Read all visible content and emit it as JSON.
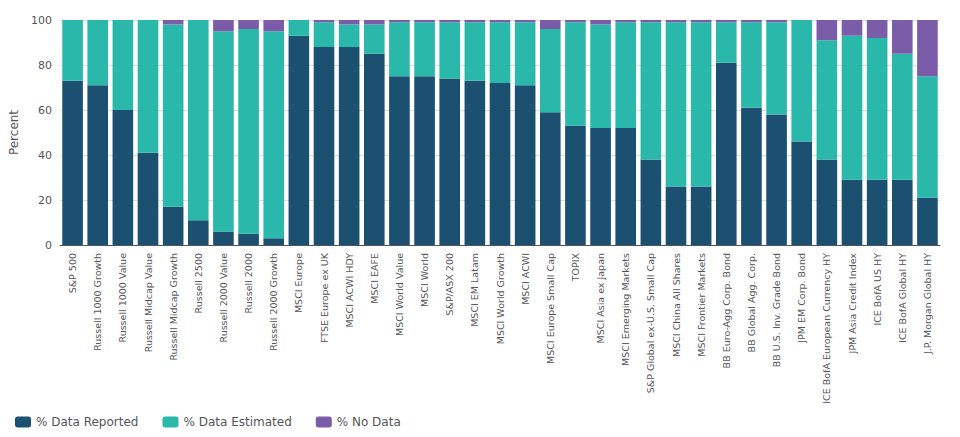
{
  "chart_data": {
    "type": "bar",
    "stacked": true,
    "ylabel": "Percent",
    "categories": [
      "S&P 500",
      "Russell 1000 Growth",
      "Russell 1000 Value",
      "Russell Midcap Value",
      "Russell Midcap Growth",
      "Russell 2500",
      "Russell 2000 Value",
      "Russell 2000",
      "Russell 2000 Growth",
      "MSCI Europe",
      "FTSE Europe ex UK",
      "MSCI ACWI HDY",
      "MSCI EAFE",
      "MSCI World Value",
      "MSCI World",
      "S&P/ASX 200",
      "MSCI EM Latam",
      "MSCI World Growth",
      "MSCI ACWI",
      "MSCI Europe Small Cap",
      "TOPIX",
      "MSCI Asia ex Japan",
      "MSCI Emerging Markets",
      "S&P Global ex-U.S. Small Cap",
      "MSCI China All Shares",
      "MSCI Frontier Markets",
      "BB Euro-Agg Corp. Bond",
      "BB Global Agg. Corp.",
      "BB U.S. Inv. Grade Bond",
      "JPM EM Corp. Bond",
      "ICE BofA European Currency HY",
      "JPM Asia Credit Index",
      "ICE BofA US HY",
      "ICE BofA Global HY",
      "J.P. Morgan Global HY"
    ],
    "series": [
      {
        "name": "% Data Reported",
        "color": "#1b5070",
        "values": [
          73,
          71,
          60,
          41,
          17,
          11,
          6,
          5,
          3,
          93,
          88,
          88,
          85,
          75,
          75,
          74,
          73,
          72,
          71,
          59,
          53,
          52,
          52,
          38,
          26,
          26,
          81,
          61,
          58,
          46,
          38,
          29,
          29,
          29,
          21
        ]
      },
      {
        "name": "% Data Estimated",
        "color": "#2ab8aa",
        "values": [
          27,
          29,
          40,
          59,
          81,
          89,
          89,
          91,
          92,
          7,
          11,
          10,
          13,
          24,
          24,
          25,
          26,
          27,
          28,
          37,
          46,
          46,
          47,
          61,
          73,
          73,
          18,
          38,
          41,
          54,
          53,
          64,
          63,
          56,
          54
        ]
      },
      {
        "name": "% No Data",
        "color": "#7b5ca8",
        "values": [
          0,
          0,
          0,
          0,
          2,
          0,
          5,
          4,
          5,
          0,
          1,
          2,
          2,
          1,
          1,
          1,
          1,
          1,
          1,
          4,
          1,
          2,
          1,
          1,
          1,
          1,
          1,
          1,
          1,
          0,
          9,
          7,
          8,
          15,
          25
        ]
      }
    ],
    "ylim": [
      0,
      100
    ],
    "yticks": [
      0,
      20,
      40,
      60,
      80,
      100
    ],
    "grid": true,
    "legend": "lower left"
  }
}
